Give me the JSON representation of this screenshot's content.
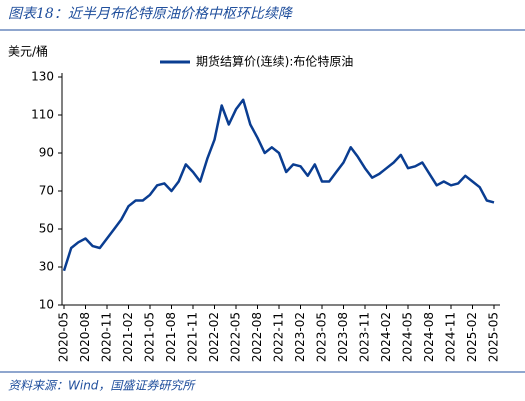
{
  "chart_data": {
    "type": "line",
    "title": "图表18：近半月布伦特原油价格中枢环比续降",
    "ylabel": "美元/桶",
    "source": "资料来源：Wind，国盛证券研究所",
    "categories": [
      "2020-05",
      null,
      null,
      "2020-08",
      null,
      null,
      "2020-11",
      null,
      null,
      "2021-02",
      null,
      null,
      "2021-05",
      null,
      null,
      "2021-08",
      null,
      null,
      "2021-11",
      null,
      null,
      "2022-02",
      null,
      null,
      "2022-05",
      null,
      null,
      "2022-08",
      null,
      null,
      "2022-11",
      null,
      null,
      "2023-02",
      null,
      null,
      "2023-05",
      null,
      null,
      "2023-08",
      null,
      null,
      "2023-11",
      null,
      null,
      "2024-02",
      null,
      null,
      "2024-05",
      null,
      null,
      "2024-08",
      null,
      null,
      "2024-11",
      null,
      null,
      "2025-02",
      null,
      null,
      "2025-05"
    ],
    "series": [
      {
        "name": "期货结算价(连续):布伦特原油",
        "color": "#0a3d91",
        "values": [
          28,
          40,
          43,
          45,
          41,
          40,
          45,
          50,
          55,
          62,
          65,
          65,
          68,
          73,
          74,
          70,
          75,
          84,
          80,
          75,
          87,
          97,
          115,
          105,
          113,
          118,
          105,
          98,
          90,
          93,
          90,
          80,
          84,
          83,
          78,
          84,
          75,
          75,
          80,
          85,
          93,
          88,
          82,
          77,
          79,
          82,
          85,
          89,
          82,
          83,
          85,
          79,
          73,
          75,
          73,
          74,
          78,
          75,
          72,
          65,
          64
        ]
      }
    ],
    "ylim": [
      10,
      130
    ],
    "yticks": [
      10,
      30,
      50,
      70,
      90,
      110,
      130
    ]
  }
}
